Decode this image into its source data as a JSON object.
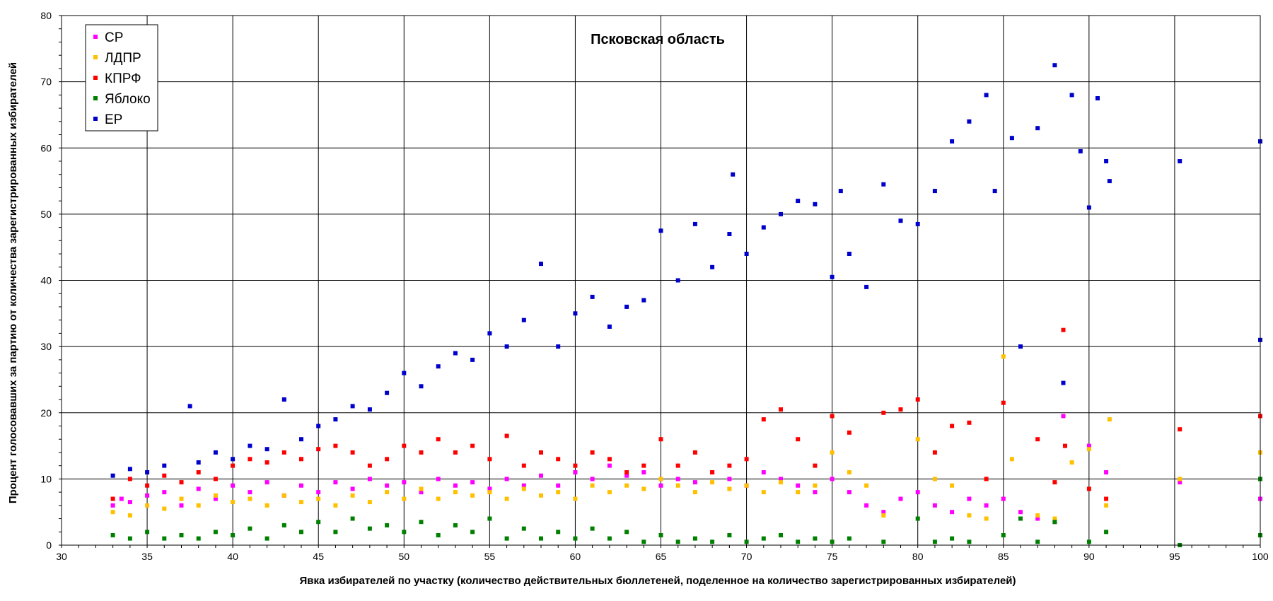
{
  "chart_data": {
    "type": "scatter",
    "title": "Псковская область",
    "xlabel": "Явка избирателей по участку (количество действительных бюллетеней, поделенное на количество зарегистрированных избирателей)",
    "ylabel": "Процент голосовавших за партию от количества зарегистрированных избирателей",
    "xlim": [
      30,
      100
    ],
    "ylim": [
      0,
      80
    ],
    "x_ticks": [
      "30",
      "35",
      "40",
      "45",
      "50",
      "55",
      "60",
      "65",
      "70",
      "75",
      "80",
      "85",
      "90",
      "95",
      "100"
    ],
    "y_ticks": [
      "0",
      "10",
      "20",
      "30",
      "40",
      "50",
      "60",
      "70",
      "80"
    ],
    "grid": true,
    "legend_position": "top-left",
    "series": [
      {
        "name": "СР",
        "color": "#ff00ff",
        "points": [
          [
            33,
            6
          ],
          [
            33.5,
            7
          ],
          [
            34,
            6.5
          ],
          [
            35,
            7.5
          ],
          [
            36,
            8
          ],
          [
            37,
            6
          ],
          [
            38,
            8.5
          ],
          [
            39,
            7
          ],
          [
            40,
            9
          ],
          [
            41,
            8
          ],
          [
            42,
            9.5
          ],
          [
            43,
            7.5
          ],
          [
            44,
            9
          ],
          [
            45,
            8
          ],
          [
            46,
            9.5
          ],
          [
            47,
            8.5
          ],
          [
            48,
            10
          ],
          [
            49,
            9
          ],
          [
            50,
            9.5
          ],
          [
            51,
            8
          ],
          [
            52,
            10
          ],
          [
            53,
            9
          ],
          [
            54,
            9.5
          ],
          [
            55,
            8.5
          ],
          [
            56,
            10
          ],
          [
            57,
            9
          ],
          [
            58,
            10.5
          ],
          [
            59,
            9
          ],
          [
            60,
            11
          ],
          [
            61,
            10
          ],
          [
            62,
            12
          ],
          [
            63,
            10.5
          ],
          [
            64,
            11
          ],
          [
            65,
            9
          ],
          [
            66,
            10
          ],
          [
            67,
            9.5
          ],
          [
            68,
            11
          ],
          [
            69,
            10
          ],
          [
            70,
            9
          ],
          [
            71,
            11
          ],
          [
            72,
            10
          ],
          [
            73,
            9
          ],
          [
            74,
            8
          ],
          [
            75,
            10
          ],
          [
            76,
            8
          ],
          [
            77,
            6
          ],
          [
            78,
            5
          ],
          [
            79,
            7
          ],
          [
            80,
            8
          ],
          [
            81,
            6
          ],
          [
            82,
            5
          ],
          [
            83,
            7
          ],
          [
            84,
            6
          ],
          [
            85,
            7
          ],
          [
            86,
            5
          ],
          [
            87,
            4
          ],
          [
            88,
            3.5
          ],
          [
            88.5,
            19.5
          ],
          [
            90,
            15
          ],
          [
            91,
            11
          ],
          [
            95.3,
            9.5
          ],
          [
            100,
            7
          ]
        ]
      },
      {
        "name": "ЛДПР",
        "color": "#ffc000",
        "points": [
          [
            33,
            5
          ],
          [
            34,
            4.5
          ],
          [
            35,
            6
          ],
          [
            36,
            5.5
          ],
          [
            37,
            7
          ],
          [
            38,
            6
          ],
          [
            39,
            7.5
          ],
          [
            40,
            6.5
          ],
          [
            41,
            7
          ],
          [
            42,
            6
          ],
          [
            43,
            7.5
          ],
          [
            44,
            6.5
          ],
          [
            45,
            7
          ],
          [
            46,
            6
          ],
          [
            47,
            7.5
          ],
          [
            48,
            6.5
          ],
          [
            49,
            8
          ],
          [
            50,
            7
          ],
          [
            51,
            8.5
          ],
          [
            52,
            7
          ],
          [
            53,
            8
          ],
          [
            54,
            7.5
          ],
          [
            55,
            8
          ],
          [
            56,
            7
          ],
          [
            57,
            8.5
          ],
          [
            58,
            7.5
          ],
          [
            59,
            8
          ],
          [
            60,
            7
          ],
          [
            61,
            9
          ],
          [
            62,
            8
          ],
          [
            63,
            9
          ],
          [
            64,
            8.5
          ],
          [
            65,
            10
          ],
          [
            66,
            9
          ],
          [
            67,
            8
          ],
          [
            68,
            9.5
          ],
          [
            69,
            8.5
          ],
          [
            70,
            9
          ],
          [
            71,
            8
          ],
          [
            72,
            9.5
          ],
          [
            73,
            8
          ],
          [
            74,
            9
          ],
          [
            75,
            14
          ],
          [
            76,
            11
          ],
          [
            77,
            9
          ],
          [
            78,
            4.5
          ],
          [
            80,
            16
          ],
          [
            81,
            10
          ],
          [
            82,
            9
          ],
          [
            83,
            4.5
          ],
          [
            84,
            4
          ],
          [
            85,
            28.5
          ],
          [
            85.5,
            13
          ],
          [
            87,
            4.5
          ],
          [
            88,
            4
          ],
          [
            89,
            12.5
          ],
          [
            90,
            14.5
          ],
          [
            91,
            6
          ],
          [
            91.2,
            19
          ],
          [
            95.3,
            10
          ],
          [
            100,
            14
          ]
        ]
      },
      {
        "name": "КПРФ",
        "color": "#ff0000",
        "points": [
          [
            33,
            7
          ],
          [
            34,
            10
          ],
          [
            35,
            9
          ],
          [
            36,
            10.5
          ],
          [
            37,
            9.5
          ],
          [
            38,
            11
          ],
          [
            39,
            10
          ],
          [
            40,
            12
          ],
          [
            41,
            13
          ],
          [
            42,
            12.5
          ],
          [
            43,
            14
          ],
          [
            44,
            13
          ],
          [
            45,
            14.5
          ],
          [
            46,
            15
          ],
          [
            47,
            14
          ],
          [
            48,
            12
          ],
          [
            49,
            13
          ],
          [
            50,
            15
          ],
          [
            51,
            14
          ],
          [
            52,
            16
          ],
          [
            53,
            14
          ],
          [
            54,
            15
          ],
          [
            55,
            13
          ],
          [
            56,
            16.5
          ],
          [
            57,
            12
          ],
          [
            58,
            14
          ],
          [
            59,
            13
          ],
          [
            60,
            12
          ],
          [
            61,
            14
          ],
          [
            62,
            13
          ],
          [
            63,
            11
          ],
          [
            64,
            12
          ],
          [
            65,
            16
          ],
          [
            66,
            12
          ],
          [
            67,
            14
          ],
          [
            68,
            11
          ],
          [
            69,
            12
          ],
          [
            70,
            13
          ],
          [
            71,
            19
          ],
          [
            72,
            20.5
          ],
          [
            73,
            16
          ],
          [
            74,
            12
          ],
          [
            75,
            19.5
          ],
          [
            76,
            17
          ],
          [
            78,
            20
          ],
          [
            79,
            20.5
          ],
          [
            80,
            22
          ],
          [
            81,
            14
          ],
          [
            82,
            18
          ],
          [
            83,
            18.5
          ],
          [
            84,
            10
          ],
          [
            85,
            21.5
          ],
          [
            87,
            16
          ],
          [
            88,
            9.5
          ],
          [
            88.5,
            32.5
          ],
          [
            88.6,
            15
          ],
          [
            90,
            8.5
          ],
          [
            91,
            7
          ],
          [
            95.3,
            17.5
          ],
          [
            100,
            19.5
          ]
        ]
      },
      {
        "name": "Яблоко",
        "color": "#008000",
        "points": [
          [
            33,
            1.5
          ],
          [
            34,
            1
          ],
          [
            35,
            2
          ],
          [
            36,
            1
          ],
          [
            37,
            1.5
          ],
          [
            38,
            1
          ],
          [
            39,
            2
          ],
          [
            40,
            1.5
          ],
          [
            41,
            2.5
          ],
          [
            42,
            1
          ],
          [
            43,
            3
          ],
          [
            44,
            2
          ],
          [
            45,
            3.5
          ],
          [
            46,
            2
          ],
          [
            47,
            4
          ],
          [
            48,
            2.5
          ],
          [
            49,
            3
          ],
          [
            50,
            2
          ],
          [
            51,
            3.5
          ],
          [
            52,
            1.5
          ],
          [
            53,
            3
          ],
          [
            54,
            2
          ],
          [
            55,
            4
          ],
          [
            56,
            1
          ],
          [
            57,
            2.5
          ],
          [
            58,
            1
          ],
          [
            59,
            2
          ],
          [
            60,
            1
          ],
          [
            61,
            2.5
          ],
          [
            62,
            1
          ],
          [
            63,
            2
          ],
          [
            64,
            0.5
          ],
          [
            65,
            1.5
          ],
          [
            66,
            0.5
          ],
          [
            67,
            1
          ],
          [
            68,
            0.5
          ],
          [
            69,
            1.5
          ],
          [
            70,
            0.5
          ],
          [
            71,
            1
          ],
          [
            72,
            1.5
          ],
          [
            73,
            0.5
          ],
          [
            74,
            1
          ],
          [
            75,
            0.5
          ],
          [
            76,
            1
          ],
          [
            78,
            0.5
          ],
          [
            80,
            4
          ],
          [
            81,
            0.5
          ],
          [
            82,
            1
          ],
          [
            83,
            0.5
          ],
          [
            85,
            1.5
          ],
          [
            86,
            4
          ],
          [
            87,
            0.5
          ],
          [
            88,
            3.5
          ],
          [
            90,
            0.5
          ],
          [
            91,
            2
          ],
          [
            95.3,
            0
          ],
          [
            100,
            1.5
          ],
          [
            100,
            10
          ]
        ]
      },
      {
        "name": "ЕР",
        "color": "#0000cc",
        "points": [
          [
            33,
            10.5
          ],
          [
            34,
            11.5
          ],
          [
            35,
            11
          ],
          [
            36,
            12
          ],
          [
            37.5,
            21
          ],
          [
            38,
            12.5
          ],
          [
            39,
            14
          ],
          [
            40,
            13
          ],
          [
            41,
            15
          ],
          [
            42,
            14.5
          ],
          [
            43,
            22
          ],
          [
            44,
            16
          ],
          [
            45,
            18
          ],
          [
            46,
            19
          ],
          [
            47,
            21
          ],
          [
            48,
            20.5
          ],
          [
            49,
            23
          ],
          [
            50,
            26
          ],
          [
            51,
            24
          ],
          [
            52,
            27
          ],
          [
            53,
            29
          ],
          [
            54,
            28
          ],
          [
            55,
            32
          ],
          [
            56,
            30
          ],
          [
            57,
            34
          ],
          [
            58,
            42.5
          ],
          [
            59,
            30
          ],
          [
            60,
            35
          ],
          [
            61,
            37.5
          ],
          [
            62,
            33
          ],
          [
            63,
            36
          ],
          [
            64,
            37
          ],
          [
            65,
            47.5
          ],
          [
            66,
            40
          ],
          [
            67,
            48.5
          ],
          [
            68,
            42
          ],
          [
            69,
            47
          ],
          [
            69.2,
            56
          ],
          [
            70,
            44
          ],
          [
            71,
            48
          ],
          [
            72,
            50
          ],
          [
            73,
            52
          ],
          [
            74,
            51.5
          ],
          [
            75,
            40.5
          ],
          [
            75.5,
            53.5
          ],
          [
            76,
            44
          ],
          [
            77,
            39
          ],
          [
            78,
            54.5
          ],
          [
            79,
            49
          ],
          [
            80,
            48.5
          ],
          [
            81,
            53.5
          ],
          [
            82,
            61
          ],
          [
            83,
            64
          ],
          [
            84,
            68
          ],
          [
            84.5,
            53.5
          ],
          [
            85.5,
            61.5
          ],
          [
            86,
            30
          ],
          [
            87,
            63
          ],
          [
            88,
            72.5
          ],
          [
            88.5,
            24.5
          ],
          [
            89,
            68
          ],
          [
            89.5,
            59.5
          ],
          [
            90,
            51
          ],
          [
            90.5,
            67.5
          ],
          [
            91,
            58
          ],
          [
            91.2,
            55
          ],
          [
            95.3,
            58
          ],
          [
            100,
            61
          ],
          [
            100,
            31
          ]
        ]
      }
    ]
  }
}
